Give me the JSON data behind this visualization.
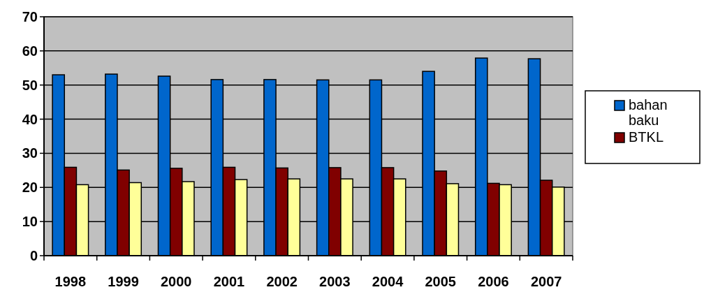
{
  "chart_data": {
    "type": "bar",
    "categories": [
      "1998",
      "1999",
      "2000",
      "2001",
      "2002",
      "2003",
      "2004",
      "2005",
      "2006",
      "2007"
    ],
    "series": [
      {
        "name": "bahan baku",
        "color": "#0066cc",
        "values": [
          53.0,
          53.2,
          52.6,
          51.6,
          51.6,
          51.5,
          51.5,
          54.0,
          57.9,
          57.7
        ]
      },
      {
        "name": "BTKL",
        "color": "#800000",
        "values": [
          25.9,
          25.1,
          25.6,
          25.9,
          25.7,
          25.8,
          25.8,
          24.8,
          21.2,
          22.1
        ]
      },
      {
        "color": "#ffff99",
        "values": [
          20.8,
          21.4,
          21.7,
          22.3,
          22.5,
          22.5,
          22.5,
          21.1,
          20.8,
          20.1
        ]
      }
    ],
    "ylim": [
      0,
      70
    ],
    "yticks": [
      0,
      10,
      20,
      30,
      40,
      50,
      60,
      70
    ],
    "grid": "y",
    "legend": "right"
  }
}
